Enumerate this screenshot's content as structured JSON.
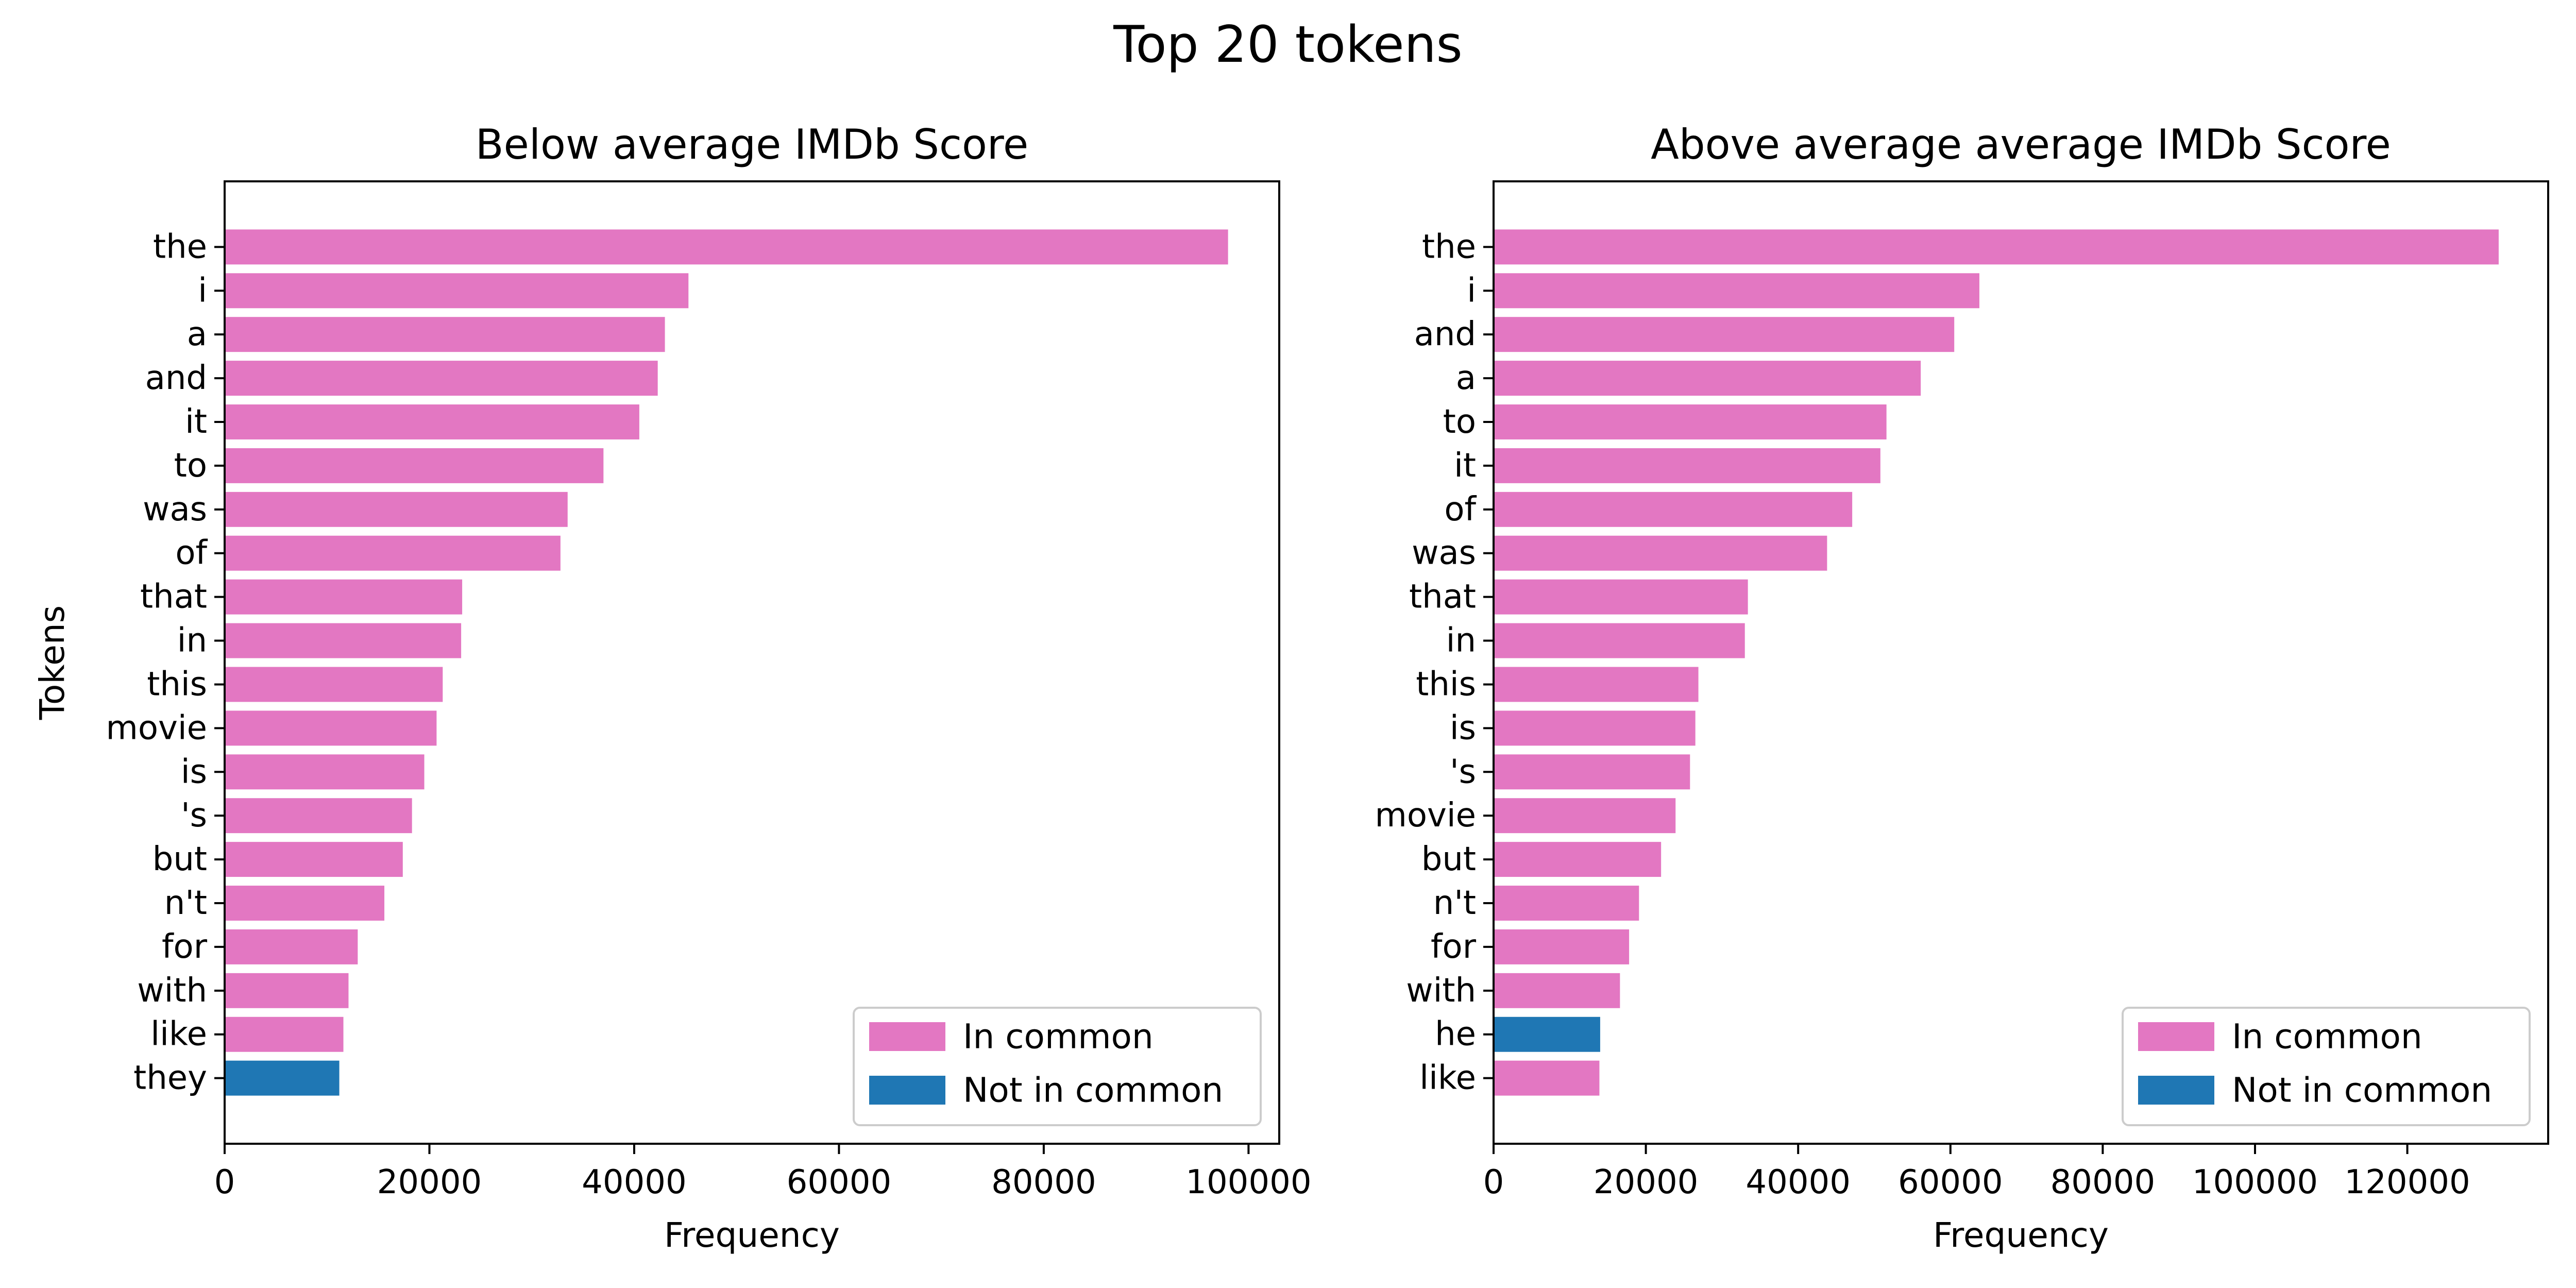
{
  "figure": {
    "title": "Top 20 tokens"
  },
  "colors": {
    "in_common": "#e377c2",
    "not_in_common": "#1f77b4"
  },
  "chart_data": [
    {
      "type": "bar",
      "orientation": "horizontal",
      "title": "Below average IMDb Score",
      "xlabel": "Frequency",
      "ylabel": "Tokens",
      "xlim": [
        0,
        103000
      ],
      "xticks": [
        0,
        20000,
        40000,
        60000,
        80000,
        100000
      ],
      "grid": false,
      "legend_position": "lower-right",
      "legend": [
        {
          "label": "In common",
          "color": "#e377c2"
        },
        {
          "label": "Not in common",
          "color": "#1f77b4"
        }
      ],
      "categories": [
        "the",
        "i",
        "a",
        "and",
        "it",
        "to",
        "was",
        "of",
        "that",
        "in",
        "this",
        "movie",
        "is",
        "'s",
        "but",
        "n't",
        "for",
        "with",
        "like",
        "they"
      ],
      "values": [
        98000,
        45300,
        43000,
        42300,
        40500,
        37000,
        33500,
        32800,
        23200,
        23100,
        21300,
        20700,
        19500,
        18300,
        17400,
        15600,
        13000,
        12100,
        11600,
        11200
      ],
      "in_common": [
        true,
        true,
        true,
        true,
        true,
        true,
        true,
        true,
        true,
        true,
        true,
        true,
        true,
        true,
        true,
        true,
        true,
        true,
        true,
        false
      ]
    },
    {
      "type": "bar",
      "orientation": "horizontal",
      "title": "Above average average IMDb Score",
      "xlabel": "Frequency",
      "ylabel": "",
      "xlim": [
        0,
        138500
      ],
      "xticks": [
        0,
        20000,
        40000,
        60000,
        80000,
        100000,
        120000
      ],
      "grid": false,
      "legend_position": "lower-right",
      "legend": [
        {
          "label": "In common",
          "color": "#e377c2"
        },
        {
          "label": "Not in common",
          "color": "#1f77b4"
        }
      ],
      "categories": [
        "the",
        "i",
        "and",
        "a",
        "to",
        "it",
        "of",
        "was",
        "that",
        "in",
        "this",
        "is",
        "'s",
        "movie",
        "but",
        "n't",
        "for",
        "with",
        "he",
        "like"
      ],
      "values": [
        132000,
        63800,
        60500,
        56100,
        51600,
        50800,
        47100,
        43800,
        33400,
        33000,
        26900,
        26500,
        25800,
        23900,
        22000,
        19100,
        17800,
        16600,
        14000,
        13900
      ],
      "in_common": [
        true,
        true,
        true,
        true,
        true,
        true,
        true,
        true,
        true,
        true,
        true,
        true,
        true,
        true,
        true,
        true,
        true,
        true,
        false,
        true
      ]
    }
  ]
}
